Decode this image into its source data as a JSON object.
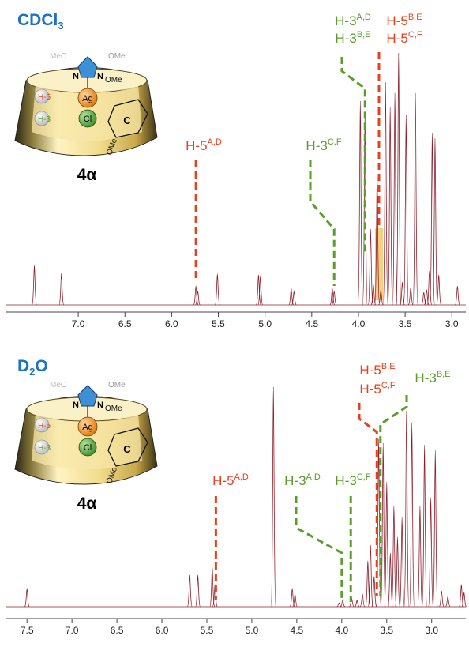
{
  "chart_data": [
    {
      "type": "spectrum",
      "solvent": {
        "text": "CDCl",
        "sub": "3"
      },
      "diagram": {
        "metal": "Ag",
        "halide": "Cl",
        "h5": "H-5",
        "h3": "H-3",
        "ring": "C",
        "ome": "OMe",
        "meo": "MeO",
        "n": "N",
        "compound": "4α"
      },
      "color": "#8b1f2a",
      "x": [
        7.47,
        7.18,
        5.74,
        5.72,
        5.51,
        5.07,
        5.05,
        4.72,
        4.69,
        4.28,
        4.26,
        3.98,
        3.93,
        3.87,
        3.84,
        3.8,
        3.76,
        3.71,
        3.66,
        3.61,
        3.57,
        3.53,
        3.49,
        3.44,
        3.39,
        3.3,
        3.27,
        3.24,
        3.21,
        3.18,
        3.14,
        2.94
      ],
      "values": [
        15.6,
        12.5,
        7.5,
        5.6,
        12.2,
        11.9,
        11.3,
        6.6,
        5.6,
        6.6,
        5.6,
        80.6,
        75.9,
        30,
        8,
        51.9,
        6,
        88.1,
        78.1,
        83.8,
        99.7,
        9,
        75.3,
        7,
        83.8,
        5,
        6,
        13.4,
        68.1,
        65.9,
        11.9,
        7.5
      ],
      "xlim": [
        7.77,
        2.85
      ],
      "xticks": [
        {
          "value": 7,
          "label": "7.0"
        },
        6.5,
        {
          "value": 6,
          "label": "6.0"
        },
        5.5,
        {
          "value": 5,
          "label": "5.0"
        },
        4.5,
        {
          "value": 4,
          "label": "4.0"
        },
        3.5,
        {
          "value": 3,
          "label": "3.0"
        }
      ],
      "annotations": [
        {
          "lines": [
            {
              "text": "H-5",
              "sup": "A,D"
            }
          ],
          "ppm": 5.74,
          "color": "#e8401c"
        },
        {
          "lines": [
            {
              "text": "H-3",
              "sup": "C,F"
            }
          ],
          "ppm": 4.26,
          "color": "#5a9e2a"
        },
        {
          "lines": [
            {
              "text": "H-3",
              "sup": "A,D"
            },
            {
              "text": "H-3",
              "sup": "B,E"
            }
          ],
          "ppm": 3.93,
          "color": "#5a9e2a"
        },
        {
          "lines": [
            {
              "text": "H-5",
              "sup": "B,E"
            },
            {
              "text": "H-5",
              "sup": "C,F"
            }
          ],
          "ppm": 3.78,
          "color": "#e8401c"
        }
      ]
    },
    {
      "type": "spectrum",
      "solvent": {
        "text": "D",
        "sub": "2",
        "after": "O"
      },
      "diagram": {
        "metal": "Ag",
        "halide": "Cl",
        "h5": "H-5",
        "h3": "H-3",
        "ring": "C",
        "ome": "OMe",
        "meo": "MeO",
        "n": "N",
        "compound": "4α"
      },
      "color": "#8b1f2a",
      "x": [
        7.5,
        5.69,
        5.6,
        5.44,
        5.41,
        4.76,
        4.55,
        4.52,
        4.03,
        3.99,
        3.89,
        3.83,
        3.77,
        3.71,
        3.68,
        3.64,
        3.59,
        3.54,
        3.5,
        3.46,
        3.42,
        3.38,
        3.33,
        3.28,
        3.22,
        3.13,
        3.08,
        3.01,
        2.96,
        2.89,
        2.82,
        2.67,
        2.64
      ],
      "values": [
        8.3,
        14.4,
        14.4,
        18,
        10.1,
        100,
        8.3,
        5.8,
        1.8,
        2.9,
        4,
        2.9,
        5.8,
        20.9,
        28.1,
        13.7,
        76.3,
        74.5,
        56.8,
        24.5,
        46,
        31.7,
        40.6,
        89.2,
        83.8,
        46,
        73.7,
        49.6,
        71.2,
        7.2,
        4.7,
        10.1,
        6.5
      ],
      "xlim": [
        7.73,
        2.62
      ],
      "xticks": [
        7.5,
        {
          "value": 7,
          "label": "7.0"
        },
        6.5,
        {
          "value": 6,
          "label": "6.0"
        },
        5.5,
        {
          "value": 5,
          "label": "5.0"
        },
        4.5,
        {
          "value": 4,
          "label": "4.0"
        },
        3.5,
        {
          "value": 3,
          "label": "3.0"
        }
      ],
      "annotations": [
        {
          "lines": [
            {
              "text": "H-5",
              "sup": "A,D"
            }
          ],
          "ppm": 5.4,
          "color": "#e8401c"
        },
        {
          "lines": [
            {
              "text": "H-3",
              "sup": "A,D"
            }
          ],
          "ppm": 4.0,
          "color": "#5a9e2a"
        },
        {
          "lines": [
            {
              "text": "H-3",
              "sup": "C,F"
            }
          ],
          "ppm": 3.9,
          "color": "#5a9e2a"
        },
        {
          "lines": [
            {
              "text": "H-5",
              "sup": "B,E"
            },
            {
              "text": "H-5",
              "sup": "C,F"
            }
          ],
          "ppm": 3.61,
          "color": "#e8401c"
        },
        {
          "lines": [
            {
              "text": "H-3",
              "sup": "B,E"
            }
          ],
          "ppm": 3.57,
          "color": "#5a9e2a"
        }
      ]
    }
  ]
}
